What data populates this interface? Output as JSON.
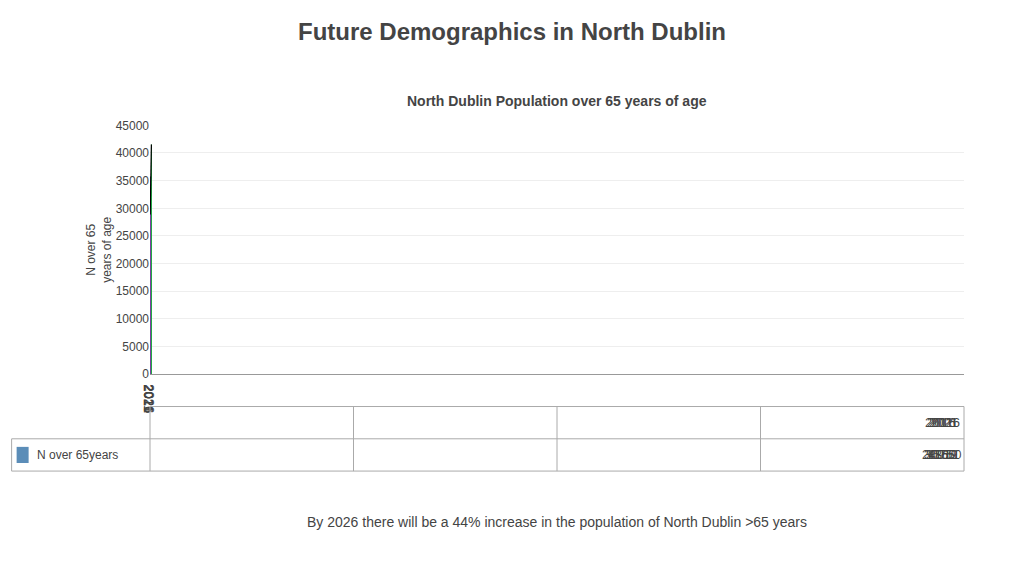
{
  "chart_data": {
    "type": "bar",
    "title": "Future Demographics in North Dublin",
    "subtitle": "North Dublin Population over 65 years of age",
    "ylabel": "N over 65\nyears of age",
    "categories": [
      "2011",
      "2016",
      "2021",
      "2026"
    ],
    "series": [
      {
        "name": "N over 65years",
        "color": "#5B8DB8",
        "colors": [
          "#5B8DB8",
          "#FF0000",
          "#7B3FA0",
          "#22A845"
        ],
        "values": [
          28860,
          30919,
          35751,
          41550
        ]
      }
    ],
    "ylim": [
      0,
      45000
    ],
    "yticks": [
      0,
      5000,
      10000,
      15000,
      20000,
      25000,
      30000,
      35000,
      40000,
      45000
    ],
    "grid": true,
    "data_labels": true,
    "annotations": [
      "By 2026 there will be a 44% increase in the population of North Dublin >65 years"
    ]
  }
}
